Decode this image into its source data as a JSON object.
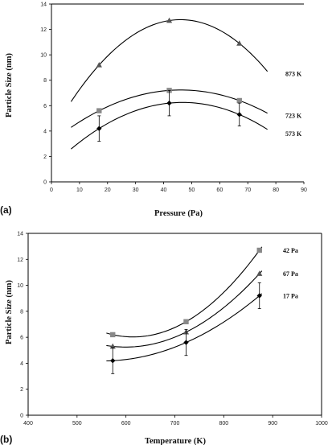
{
  "chart_data": [
    {
      "type": "scatter",
      "panel_label": "(a)",
      "xlabel": "Pressure (Pa)",
      "ylabel": "Particle Size (nm)",
      "xlim": [
        0,
        90
      ],
      "ylim": [
        0,
        14
      ],
      "xticks": [
        0,
        10,
        20,
        30,
        40,
        50,
        60,
        70,
        80,
        90
      ],
      "yticks": [
        0,
        2,
        4,
        6,
        8,
        10,
        12,
        14
      ],
      "fit_lines": "quadratic",
      "series": [
        {
          "name": "873 K",
          "marker": "triangle",
          "color": "#555555",
          "x": [
            17,
            42,
            67
          ],
          "y": [
            9.2,
            12.7,
            10.9
          ],
          "err": [
            0,
            0,
            0
          ]
        },
        {
          "name": "723 K",
          "marker": "square",
          "color": "#888888",
          "x": [
            17,
            42,
            67
          ],
          "y": [
            5.6,
            7.2,
            6.4
          ],
          "err": [
            0,
            0,
            0
          ]
        },
        {
          "name": "573 K",
          "marker": "diamond",
          "color": "#000000",
          "x": [
            17,
            42,
            67
          ],
          "y": [
            4.2,
            6.2,
            5.3
          ],
          "err": [
            1.0,
            1.0,
            0.9
          ]
        }
      ]
    },
    {
      "type": "scatter",
      "panel_label": "(b)",
      "xlabel": "Temperature (K)",
      "ylabel": "Particle Size (nm)",
      "xlim": [
        400,
        1000
      ],
      "ylim": [
        0,
        14
      ],
      "xticks": [
        400,
        500,
        600,
        700,
        800,
        900,
        1000
      ],
      "yticks": [
        0,
        2,
        4,
        6,
        8,
        10,
        12,
        14
      ],
      "fit_lines": "quadratic",
      "series": [
        {
          "name": "42 Pa",
          "marker": "square",
          "color": "#888888",
          "x": [
            573,
            723,
            873
          ],
          "y": [
            6.2,
            7.2,
            12.7
          ],
          "err": [
            0,
            0,
            0
          ]
        },
        {
          "name": "67 Pa",
          "marker": "triangle",
          "color": "#555555",
          "x": [
            573,
            723,
            873
          ],
          "y": [
            5.3,
            6.4,
            10.9
          ],
          "err": [
            0,
            0,
            0
          ]
        },
        {
          "name": "17 Pa",
          "marker": "diamond",
          "color": "#000000",
          "x": [
            573,
            723,
            873
          ],
          "y": [
            4.2,
            5.6,
            9.2
          ],
          "err": [
            1.0,
            1.0,
            1.0
          ]
        }
      ]
    }
  ]
}
